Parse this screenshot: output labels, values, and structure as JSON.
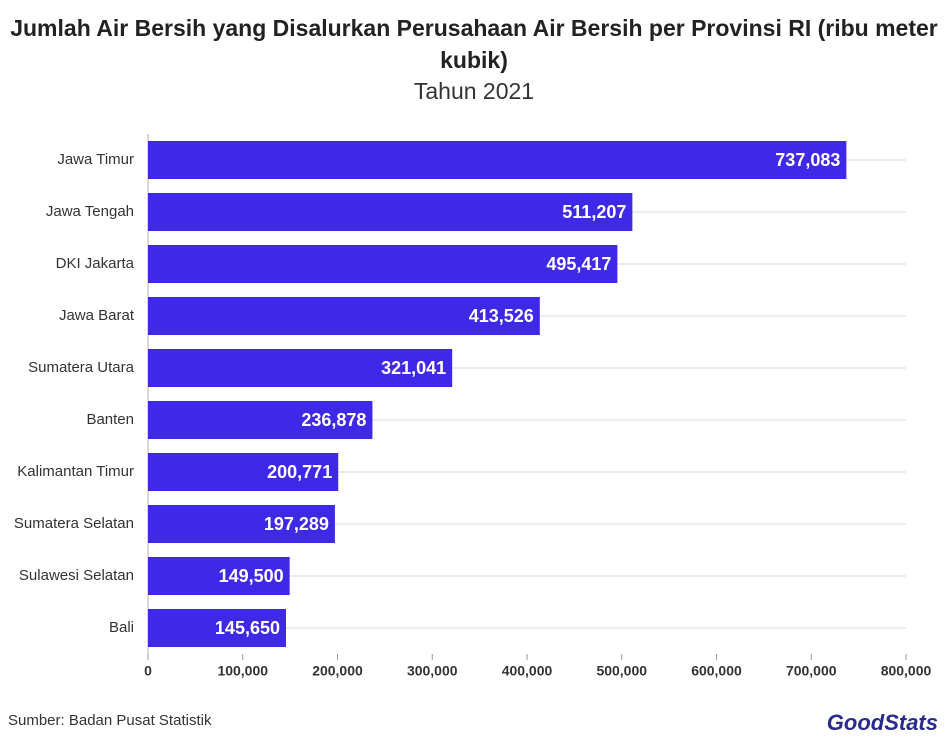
{
  "chart_data": {
    "type": "bar",
    "orientation": "horizontal",
    "title": "Jumlah Air Bersih yang Disalurkan Perusahaan Air Bersih per Provinsi RI (ribu meter kubik)",
    "subtitle": "Tahun 2021",
    "categories": [
      "Jawa Timur",
      "Jawa Tengah",
      "DKI Jakarta",
      "Jawa Barat",
      "Sumatera Utara",
      "Banten",
      "Kalimantan Timur",
      "Sumatera Selatan",
      "Sulawesi Selatan",
      "Bali"
    ],
    "values": [
      737083,
      511207,
      495417,
      413526,
      321041,
      236878,
      200771,
      197289,
      149500,
      145650
    ],
    "value_labels": [
      "737,083",
      "511,207",
      "495,417",
      "413,526",
      "321,041",
      "236,878",
      "200,771",
      "197,289",
      "149,500",
      "145,650"
    ],
    "color": "#4029e6",
    "xlim": [
      0,
      800000
    ],
    "xticks": [
      0,
      {
        "value": 100000,
        "label": "100,000"
      },
      {
        "value": 200000,
        "label": "200,000"
      },
      {
        "value": 300000,
        "label": "300,000"
      },
      {
        "value": 400000,
        "label": "400,000"
      },
      {
        "value": 500000,
        "label": "500,000"
      },
      {
        "value": 600000,
        "label": "600,000"
      },
      {
        "value": 700000,
        "label": "700,000"
      },
      {
        "value": 800000,
        "label": "800,000"
      }
    ],
    "grid": true,
    "source": "Sumber: Badan Pusat Statistik",
    "logo": "GoodStats"
  }
}
